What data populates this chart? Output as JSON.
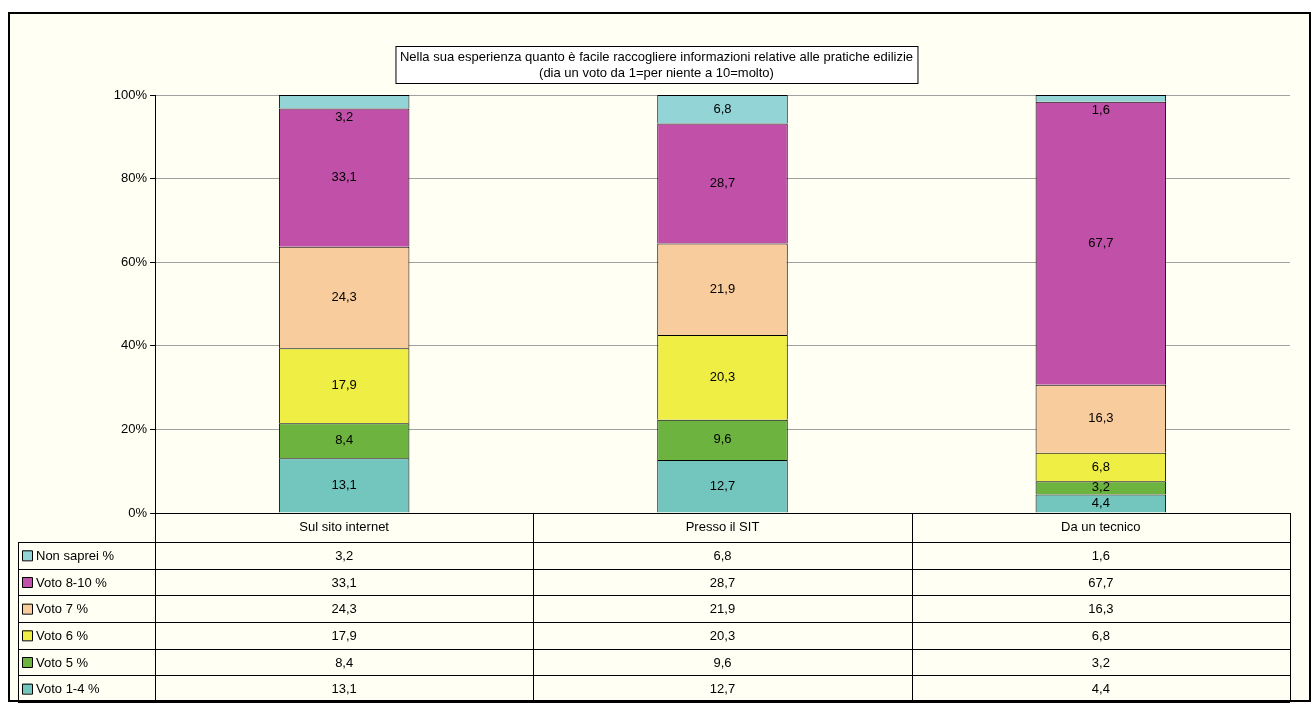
{
  "chart_data": {
    "type": "bar",
    "stacked": true,
    "title": "Nella sua esperienza quanto è facile raccogliere informazioni relative alle pratiche edilizie",
    "subtitle": "(dia un voto da 1=per niente a 10=molto)",
    "categories": [
      "Sul sito internet",
      "Presso il SIT",
      "Da un tecnico"
    ],
    "series": [
      {
        "name": "Voto 1-4 %",
        "color": "#73c6be",
        "values": [
          13.1,
          12.7,
          4.4
        ],
        "value_labels": [
          "13,1",
          "12,7",
          "4,4"
        ]
      },
      {
        "name": "Voto 5 %",
        "color": "#6db33f",
        "values": [
          8.4,
          9.6,
          3.2
        ],
        "value_labels": [
          "8,4",
          "9,6",
          "3,2"
        ]
      },
      {
        "name": "Voto 6 %",
        "color": "#eeee44",
        "values": [
          17.9,
          20.3,
          6.8
        ],
        "value_labels": [
          "17,9",
          "20,3",
          "6,8"
        ]
      },
      {
        "name": "Voto 7 %",
        "color": "#f9cc9d",
        "values": [
          24.3,
          21.9,
          16.3
        ],
        "value_labels": [
          "24,3",
          "21,9",
          "16,3"
        ]
      },
      {
        "name": "Voto 8-10 %",
        "color": "#c050a8",
        "values": [
          33.1,
          28.7,
          67.7
        ],
        "value_labels": [
          "33,1",
          "28,7",
          "67,7"
        ]
      },
      {
        "name": "Non saprei %",
        "color": "#93d4d6",
        "values": [
          3.2,
          6.8,
          1.6
        ],
        "value_labels": [
          "3,2",
          "6,8",
          "1,6"
        ]
      }
    ],
    "ylim": [
      0,
      100
    ],
    "yticks": [
      {
        "value": 0,
        "label": "0%"
      },
      {
        "value": 20,
        "label": "20%"
      },
      {
        "value": 40,
        "label": "40%"
      },
      {
        "value": 60,
        "label": "60%"
      },
      {
        "value": 80,
        "label": "80%"
      },
      {
        "value": 100,
        "label": "100%"
      }
    ],
    "grid": "y",
    "legend": "bottom"
  }
}
